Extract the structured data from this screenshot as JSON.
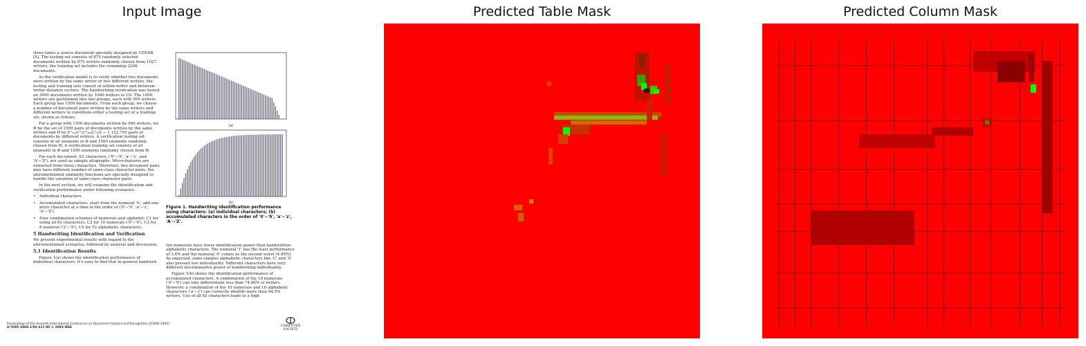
{
  "titles": {
    "input": "Input Image",
    "table_mask": "Predicted Table Mask",
    "column_mask": "Predicted Column Mask"
  },
  "document": {
    "left_column": [
      "three times a source document specially designed by CEDAR [8]. The testing set consists of 875 randomly selected documents written by 875 writers randomly chosen from 1027 writers, the training set includes the remaining 2206 documents.",
      "As the verification model is to verify whether two documents were written by the same writer or two different writers, the testing and training sets consist of within-writer and between-writer distance vectors. The handwriting verification was tested on 3000 documents written by 1000 writers in US. The 1000 writers are partitioned into two groups, each with 500 writers. Each group has 1500 documents. From each group, we choose a number of document pairs written by the same writers and different writers to constitute either a testing set or a training set, shown as follows.",
      "For a group with 1500 documents written by 500 writers, let Φ be the set of 1500 pairs of documents written by the same writers and Θ be C¹₅₀₀C¹₃C¹₄₉₉C¹₃/2 − 1,122,750 pairs of documents by different writers. A verification testing set consists of all elements in Φ and 1500 elements randomly chosen from Θ; A verification training set consists of all elements in Φ and 1500 elements randomly chosen from Θ.",
      "For each document, 62 characters, ('0'∼'9', 'a'∼'z', and 'A'∼'Z'), are used as sample allographs. Micro-features are extracted from these characters. Therefore, two document pairs may have different number of same-class character pairs, the aforementioned similarity functions are specially designed to handle the variation of same-class character pairs.",
      "In the next section, we will examine the identification and verification performance under following scenarios:"
    ],
    "bullets": [
      "Individual characters.",
      "Accumulated characters: start from the numeral '0', add one more character at a time in the order of ('0'∼'9', 'a'∼'z', 'A'∼'Z').",
      "Four combination schemes of numerals and alphabet: C1 for using all 62 characters, C2 for 10 numerals ('0'∼'9'), C3 for 8 numeral ('2'∼'9'), C4 for 52 alphabetic characters."
    ],
    "section_heading": "5   Handwriting Identification and Verification",
    "section_text": "We present experimental results with regard to the aforementioned scenarios, followed by analysis and discussion.",
    "subsection_heading": "5.1   Identification Results",
    "subsection_text": "Figure 1(a) shows the identification performance of individual characters. It's easy to find that in general handwrit-",
    "right_column": [
      "ten numerals have lower identification power than handwritten alphabetic characters. The numeral '1' has the least performance of 3.6% and the numeral '0' comes as the second worst (4.89%). As expected, some simples alphabetic characters like 'C' and 'X' also present low individuality. Different characters have very different discriminative power of handwriting individuality.",
      "Figure 1(b) shows the identification performance of accumulated characters. A combination of the 10 numerals ('0'∼'9') can only differentiate less than 74.86% of writers. However, a combination of the 10 numerals and 10 alphabetic characters ('a'∼'j') can correctly identify more than 94.5% writers. Use of all 62 characters leads to a high"
    ],
    "figure_caption": "Figure 1. Handwriting identification performance using characters: (a) individual characters; (b) accumulated characters in the order of '0'∼'9', 'a'∼'z', 'A'∼'Z'.",
    "chart_a_label": "(a)",
    "chart_b_label": "(b)",
    "footer_line1": "Proceedings of the Seventh International Conference on Document Analysis and Recognition (ICDAR 2003)",
    "footer_line2": "0-7695-1960-1/03 $17.00 © 2003 IEEE",
    "logo_line1": "COMPUTER",
    "logo_line2": "SOCIETY"
  },
  "colors": {
    "mask_background": "#ff0000",
    "mask_dark": "#b40000",
    "mask_positive": "#00ff00"
  }
}
